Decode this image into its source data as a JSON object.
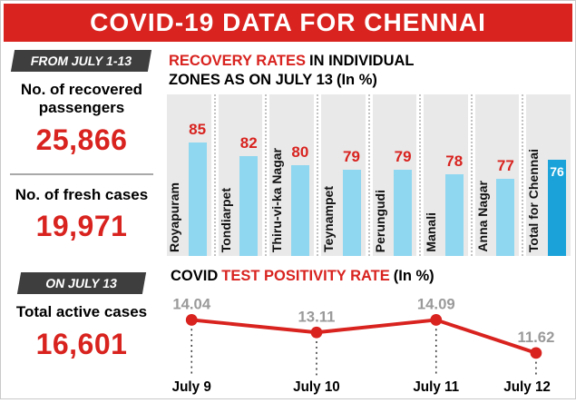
{
  "header": {
    "title": "COVID-19 DATA FOR CHENNAI"
  },
  "colors": {
    "accent_red": "#d8231f",
    "badge_dark": "#3e3e3e",
    "bar_blue": "#8fd6f0",
    "bar_highlight_blue": "#1ba3d9",
    "line_label_gray": "#9a9a9a"
  },
  "sidebar": {
    "badge1": "FROM JULY 1-13",
    "stat1_label": "No. of recovered passengers",
    "stat1_value": "25,866",
    "stat2_label": "No. of fresh cases",
    "stat2_value": "19,971",
    "badge2": "ON JULY 13",
    "stat3_label": "Total active cases",
    "stat3_value": "16,601"
  },
  "bar_panel": {
    "title_red": "RECOVERY RATES",
    "title_rest": "IN INDIVIDUAL ZONES AS ON JULY 13",
    "title_unit": "(In %)"
  },
  "line_panel": {
    "title_black": "COVID",
    "title_red": "TEST POSITIVITY RATE",
    "title_unit": "(In %)"
  },
  "chart_data": [
    {
      "type": "bar",
      "title": "RECOVERY RATES IN INDIVIDUAL ZONES AS ON JULY 13 (In %)",
      "categories": [
        "Royapuram",
        "Tondiarpet",
        "Thiru-vi-ka Nagar",
        "Teynampet",
        "Perungudi",
        "Manali",
        "Anna Nagar",
        "Total for Chennai"
      ],
      "values": [
        85,
        82,
        80,
        79,
        79,
        78,
        77,
        76
      ],
      "ylim": [
        60,
        90
      ],
      "bar_color": "#8fd6f0",
      "highlight_index": 7,
      "highlight_color": "#1ba3d9",
      "value_color": "#d8231f",
      "legend": "none",
      "grid": "column-stripes"
    },
    {
      "type": "line",
      "title": "COVID TEST POSITIVITY RATE (In %)",
      "categories": [
        "July 9",
        "July 10",
        "July 11",
        "July 12"
      ],
      "values": [
        14.04,
        13.11,
        14.09,
        11.62
      ],
      "ylim": [
        11,
        15
      ],
      "line_color": "#d8231f",
      "label_color": "#9a9a9a",
      "xlabel_color": "#000000",
      "legend": "none",
      "grid": "off"
    }
  ]
}
